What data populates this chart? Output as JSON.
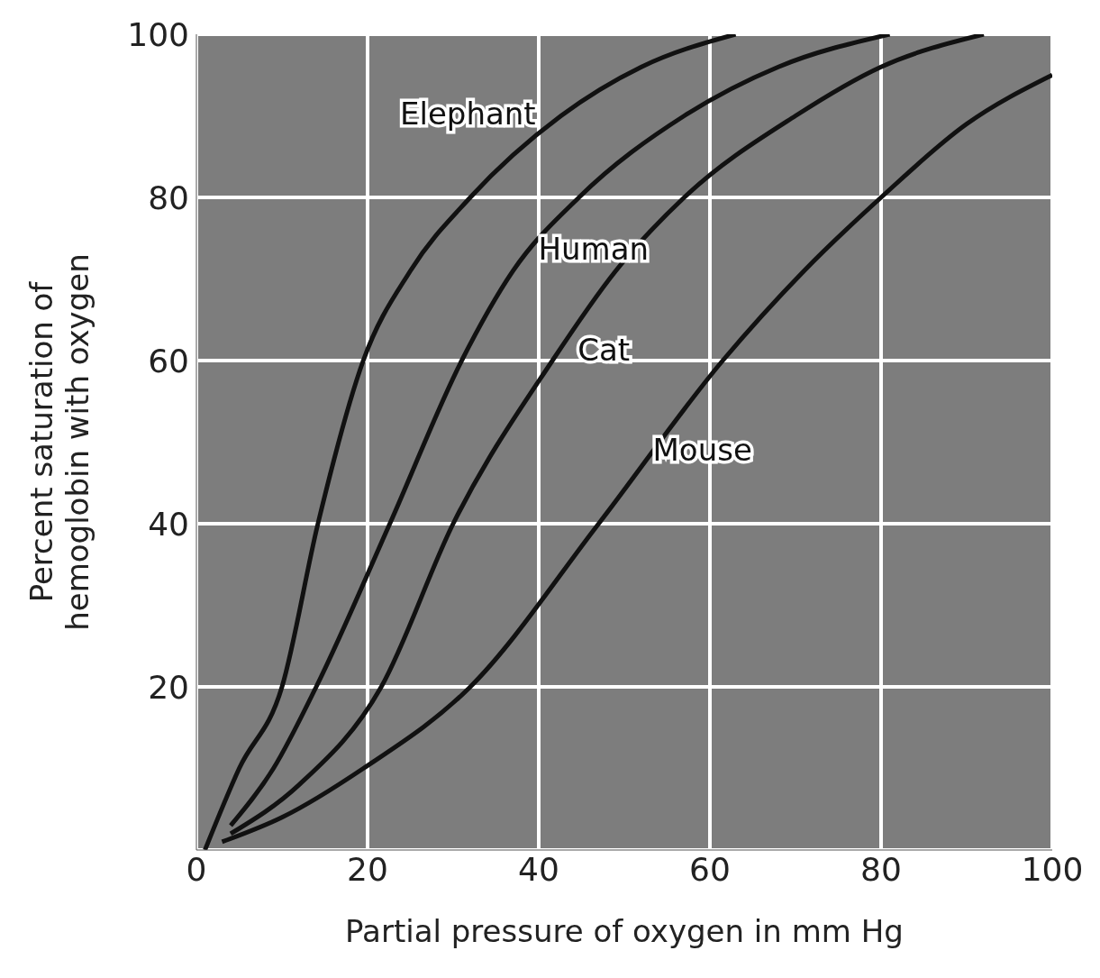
{
  "chart_data": {
    "type": "line",
    "xlabel": "Partial pressure of oxygen in mm Hg",
    "ylabel": "Percent saturation of\nhemoglobin with oxygen",
    "xlim": [
      0,
      100
    ],
    "xticks": [
      0,
      20,
      40,
      60,
      80,
      100
    ],
    "ylim": [
      0,
      100
    ],
    "yticks": [
      20,
      40,
      60,
      80,
      100
    ],
    "grid": true,
    "marker": "none",
    "series": [
      {
        "name": "Elephant",
        "color": "#111111",
        "x": [
          1,
          5,
          10,
          14.2,
          19.5,
          25,
          32,
          42.6,
          52,
          63
        ],
        "values": [
          0,
          10,
          20,
          40,
          60,
          71,
          80,
          90,
          96,
          100
        ]
      },
      {
        "name": "Human",
        "color": "#111111",
        "x": [
          4,
          9,
          14,
          22.6,
          31,
          37,
          44.7,
          57,
          68,
          81
        ],
        "values": [
          3,
          10,
          20,
          40,
          60,
          71,
          80,
          90,
          96,
          100
        ]
      },
      {
        "name": "Cat",
        "color": "#111111",
        "x": [
          4,
          12,
          21.6,
          30,
          41.6,
          49,
          57,
          70,
          80,
          92
        ],
        "values": [
          2,
          8,
          20,
          40,
          60,
          71,
          80,
          90,
          96,
          100
        ]
      },
      {
        "name": "Mouse",
        "color": "#111111",
        "x": [
          3,
          10,
          19.5,
          32,
          47,
          61.5,
          71,
          80,
          90,
          100
        ],
        "values": [
          1,
          4,
          10,
          20,
          40,
          60,
          71,
          80,
          89,
          95
        ]
      }
    ]
  }
}
